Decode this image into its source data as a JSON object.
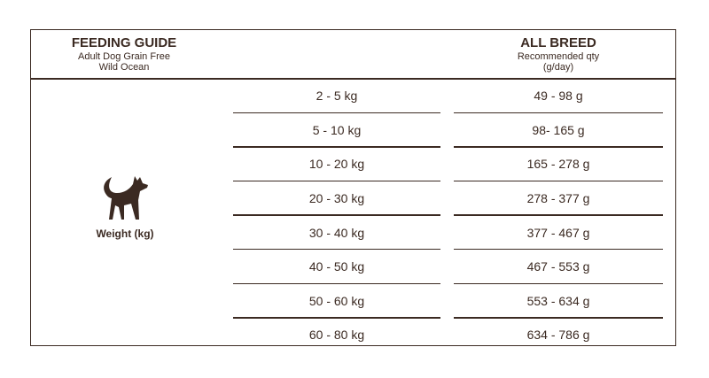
{
  "header": {
    "title": "FEEDING GUIDE",
    "subtitle_1": "Adult Dog Grain Free",
    "subtitle_2": "Wild Ocean",
    "col_title": "ALL BREED",
    "col_sub_1": "Recommended qty",
    "col_sub_2": "(g/day)"
  },
  "side": {
    "icon": "dog-icon",
    "label": "Weight (kg)"
  },
  "rows": [
    {
      "weight": "2 - 5 kg",
      "qty": "49 - 98 g"
    },
    {
      "weight": "5 - 10 kg",
      "qty": "98- 165 g"
    },
    {
      "weight": "10 - 20 kg",
      "qty": "165 - 278 g"
    },
    {
      "weight": "20 - 30 kg",
      "qty": "278 - 377 g"
    },
    {
      "weight": "30 - 40 kg",
      "qty": "377 - 467 g"
    },
    {
      "weight": "40 - 50 kg",
      "qty": "467 - 553 g"
    },
    {
      "weight": "50 - 60 kg",
      "qty": "553 - 634 g"
    },
    {
      "weight": "60 - 80 kg",
      "qty": "634 - 786 g"
    }
  ],
  "colors": {
    "ink": "#3b2a22"
  }
}
